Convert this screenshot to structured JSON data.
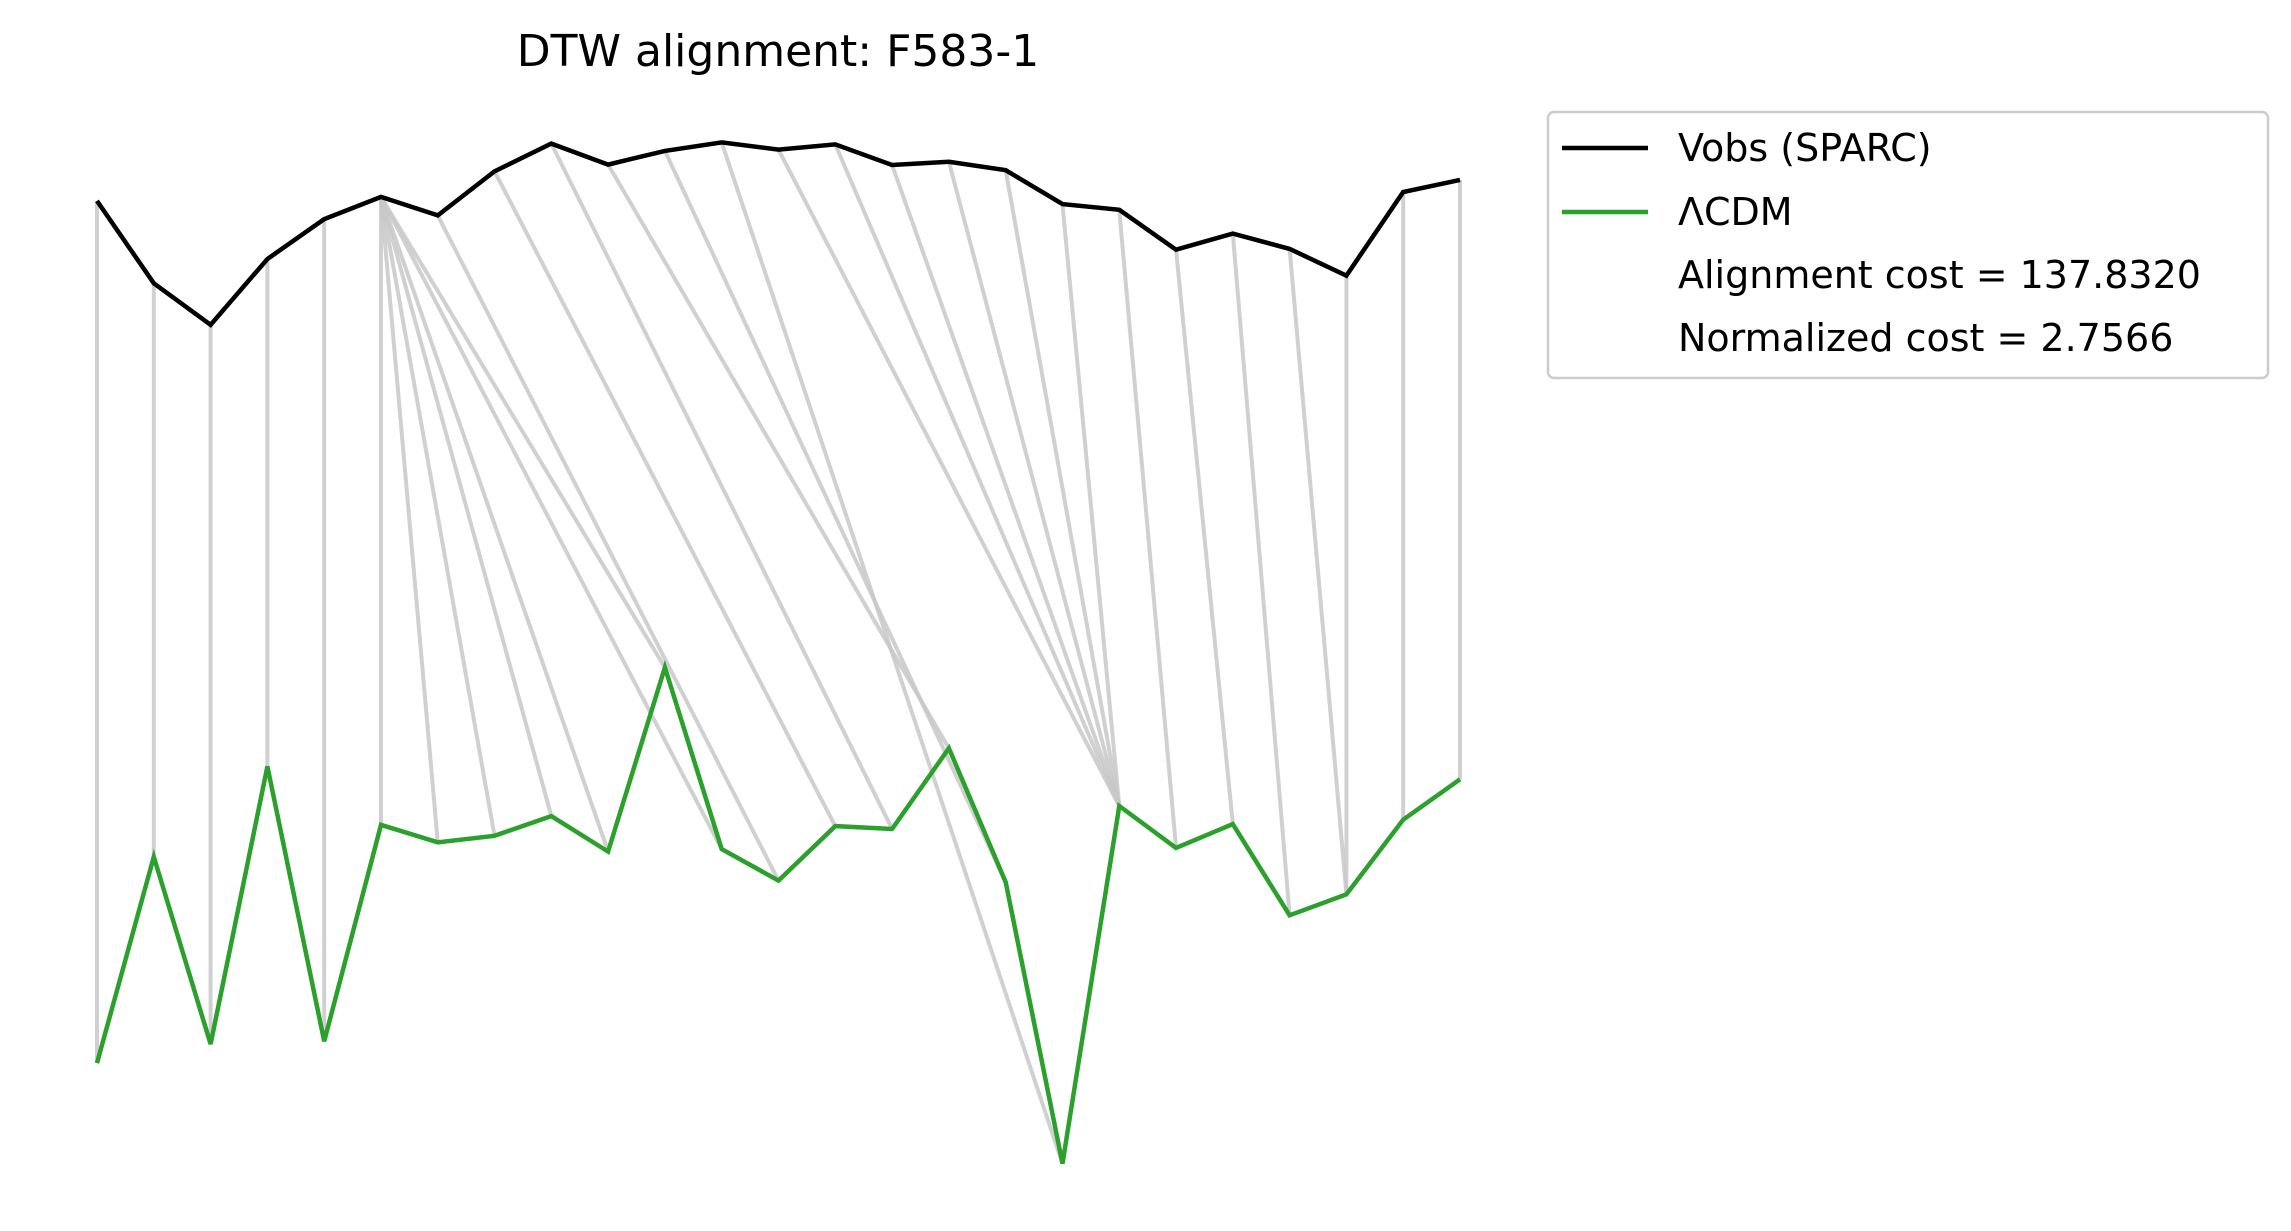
{
  "chart_data": {
    "type": "line",
    "title": "DTW alignment: F583-1",
    "xlabel": "",
    "ylabel": "",
    "grid": false,
    "axes_visible": false,
    "legend_placement": "outside-top-right",
    "x": [
      0,
      1,
      2,
      3,
      4,
      5,
      6,
      7,
      8,
      9,
      10,
      11,
      12,
      13,
      14,
      15,
      16,
      17,
      18,
      19,
      20,
      21,
      22,
      23,
      24
    ],
    "series": [
      {
        "name": "Vobs (SPARC)",
        "color": "#000000",
        "values": [
          80.0,
          59.6,
          49.3,
          65.6,
          75.5,
          81.0,
          76.4,
          87.3,
          94.2,
          89.0,
          92.4,
          94.5,
          92.7,
          94.0,
          88.9,
          89.7,
          87.6,
          79.2,
          77.8,
          67.9,
          71.9,
          68.1,
          61.5,
          82.2,
          85.2
        ]
      },
      {
        "name": "ΛCDM",
        "color": "#2ca02c",
        "values": [
          -133.6,
          -82.5,
          -128.9,
          -60.1,
          -128.2,
          -74.6,
          -78.9,
          -77.3,
          -72.4,
          -81.2,
          -35.6,
          -80.6,
          -88.4,
          -74.9,
          -75.6,
          -55.6,
          -88.8,
          -158.5,
          -69.9,
          -80.3,
          -74.4,
          -97.0,
          -91.8,
          -73.3,
          -63.3
        ]
      }
    ],
    "alignment_pairs": [
      [
        0,
        0
      ],
      [
        1,
        1
      ],
      [
        2,
        2
      ],
      [
        3,
        3
      ],
      [
        4,
        4
      ],
      [
        5,
        5
      ],
      [
        5,
        6
      ],
      [
        5,
        7
      ],
      [
        5,
        8
      ],
      [
        5,
        9
      ],
      [
        5,
        10
      ],
      [
        5,
        11
      ],
      [
        6,
        12
      ],
      [
        7,
        13
      ],
      [
        8,
        14
      ],
      [
        9,
        15
      ],
      [
        10,
        16
      ],
      [
        11,
        17
      ],
      [
        12,
        18
      ],
      [
        13,
        18
      ],
      [
        14,
        18
      ],
      [
        15,
        18
      ],
      [
        16,
        18
      ],
      [
        17,
        18
      ],
      [
        18,
        19
      ],
      [
        19,
        20
      ],
      [
        20,
        21
      ],
      [
        21,
        22
      ],
      [
        22,
        22
      ],
      [
        23,
        23
      ],
      [
        24,
        24
      ]
    ],
    "alignment_color": "#c8c8c8",
    "ylim": [
      -170,
      105
    ],
    "legend_extra": {
      "alignment_cost": "Alignment cost = 137.8320",
      "normalized_cost": "Normalized cost = 2.7566"
    }
  }
}
